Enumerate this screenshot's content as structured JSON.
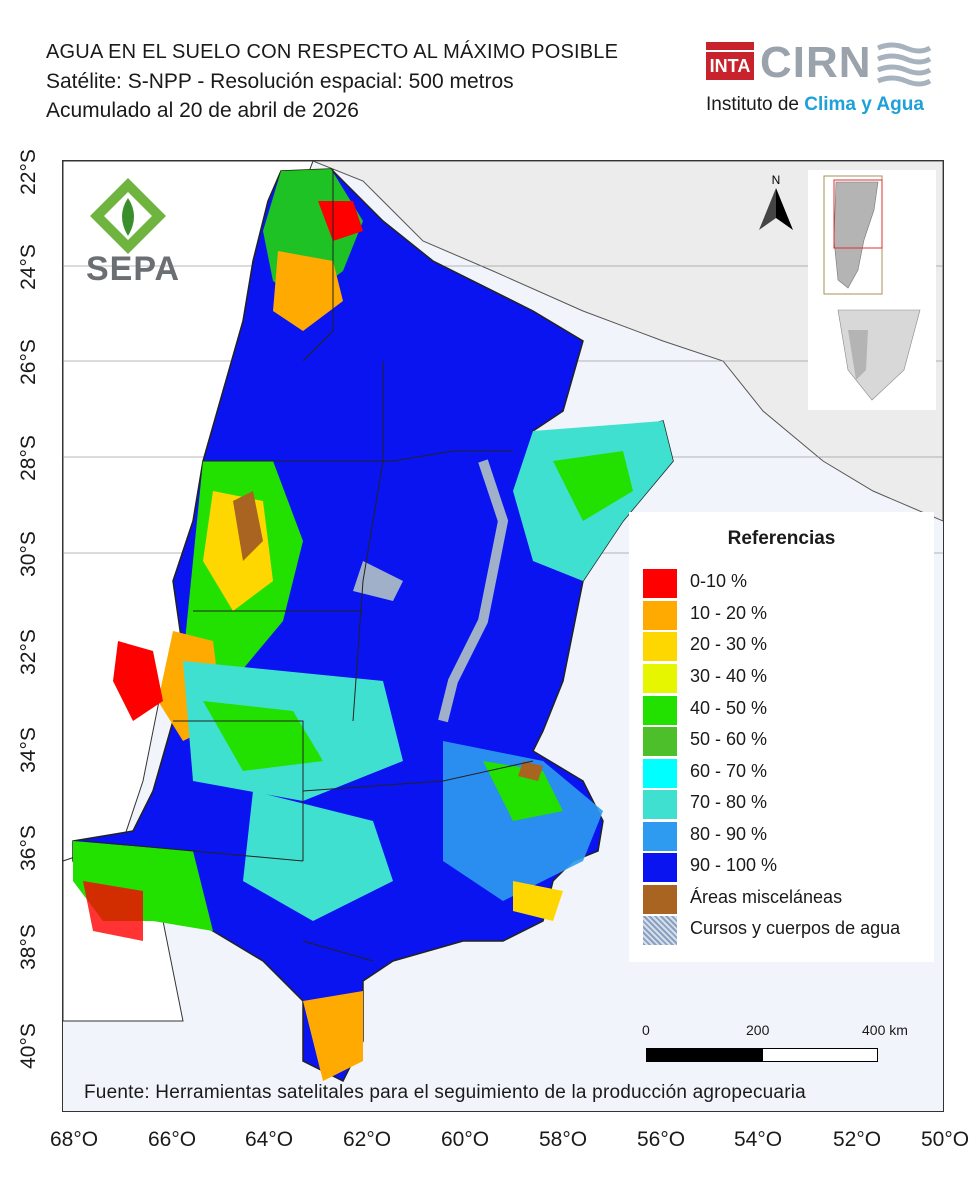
{
  "title": {
    "line1": "AGUA EN EL SUELO CON RESPECTO AL MÁXIMO POSIBLE",
    "line2": "Satélite: S-NPP - Resolución espacial: 500 metros",
    "line3": "Acumulado al 20 de abril de 2026"
  },
  "logos": {
    "inta": "INTA",
    "cirn": "CIRN",
    "institute_prefix": "Instituto de ",
    "institute_highlight": "Clima y Agua",
    "sepa": "SEPA"
  },
  "north_label": "N",
  "lat_labels": [
    "22°S",
    "24°S",
    "26°S",
    "28°S",
    "30°S",
    "32°S",
    "34°S",
    "36°S",
    "38°S",
    "40°S"
  ],
  "lon_labels": [
    "68°O",
    "66°O",
    "64°O",
    "62°O",
    "60°O",
    "58°O",
    "56°O",
    "54°O",
    "52°O",
    "50°O"
  ],
  "legend": {
    "title": "Referencias",
    "items": [
      {
        "label": "0-10 %",
        "color": "#ff0000"
      },
      {
        "label": "10 - 20 %",
        "color": "#ffaa00"
      },
      {
        "label": "20 - 30 %",
        "color": "#ffd700"
      },
      {
        "label": "30 - 40 %",
        "color": "#e6f500"
      },
      {
        "label": "40 - 50 %",
        "color": "#22e000"
      },
      {
        "label": "50 - 60 %",
        "color": "#4cbf2a"
      },
      {
        "label": "60 - 70 %",
        "color": "#00ffff"
      },
      {
        "label": "70 - 80 %",
        "color": "#40e0d0"
      },
      {
        "label": "80 - 90 %",
        "color": "#2e9bf0"
      },
      {
        "label": "90 - 100 %",
        "color": "#0a14f0"
      },
      {
        "label": "Áreas misceláneas",
        "color": "#a86420"
      },
      {
        "label": "Cursos y cuerpos de agua",
        "color": "#9fb0c8"
      }
    ]
  },
  "scale": {
    "labels": [
      "0",
      "200",
      "400 km"
    ]
  },
  "source": "Fuente: Herramientas satelitales para el seguimiento de la producción agropecuaria",
  "colors": {
    "ocean": "#f1f4fa",
    "neighbor_land": "#ececec",
    "border": "#222222"
  }
}
